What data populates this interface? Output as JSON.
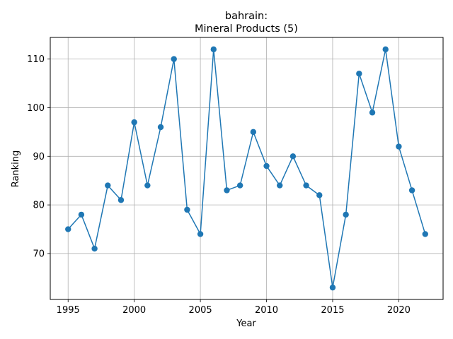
{
  "chart_data": {
    "type": "line",
    "title_line1": "bahrain:",
    "title_line2": "Mineral Products (5)",
    "xlabel": "Year",
    "ylabel": "Ranking",
    "x": [
      1995,
      1996,
      1997,
      1998,
      1999,
      2000,
      2001,
      2002,
      2003,
      2004,
      2005,
      2006,
      2007,
      2008,
      2009,
      2010,
      2011,
      2012,
      2013,
      2014,
      2015,
      2016,
      2017,
      2018,
      2019,
      2020,
      2021,
      2022
    ],
    "series": [
      {
        "values": [
          75,
          78,
          71,
          84,
          81,
          97,
          84,
          96,
          110,
          79,
          74,
          112,
          83,
          84,
          95,
          88,
          84,
          90,
          84,
          82,
          63,
          78,
          107,
          99,
          112,
          92,
          83,
          74
        ]
      }
    ],
    "xticks": [
      1995,
      2000,
      2005,
      2010,
      2015,
      2020
    ],
    "yticks": [
      70,
      80,
      90,
      100,
      110
    ],
    "xlim": [
      1993.65,
      2023.35
    ],
    "ylim": [
      60.55,
      114.45
    ],
    "grid": true,
    "marker": "circle",
    "colors": {
      "line": "#1f77b4",
      "grid": "#b0b0b0",
      "axis": "#000000"
    }
  }
}
